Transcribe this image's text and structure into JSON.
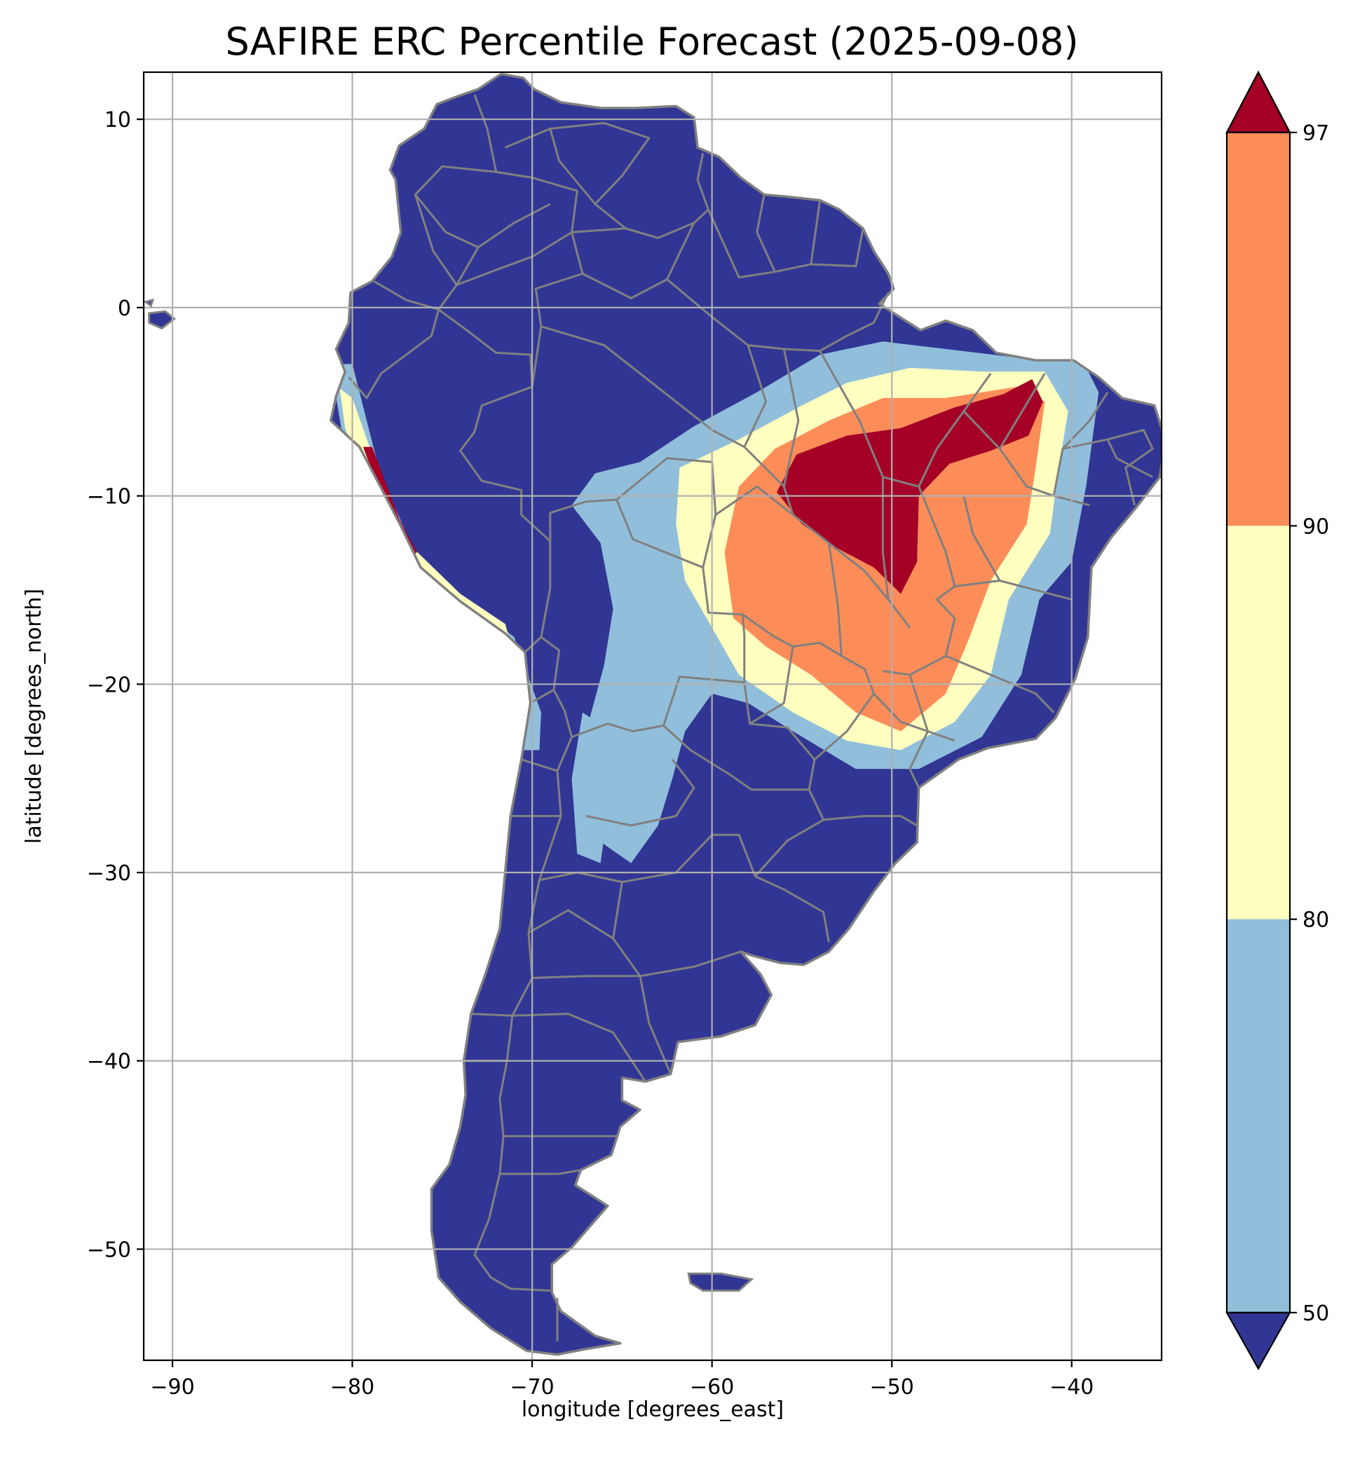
{
  "title": "SAFIRE ERC Percentile Forecast (2025-09-08)",
  "map": {
    "xlabel": "longitude [degrees_east]",
    "ylabel": "latitude [degrees_north]",
    "xlim": [
      -91.6,
      -35
    ],
    "ylim": [
      -55.9,
      12.5
    ],
    "x_ticks": [
      -90,
      -80,
      -70,
      -60,
      -50,
      -40
    ],
    "y_ticks": [
      10,
      0,
      -10,
      -20,
      -30,
      -40,
      -50
    ],
    "x_tick_labels": [
      "−90",
      "−80",
      "−70",
      "−60",
      "−50",
      "−40"
    ],
    "y_tick_labels": [
      "10",
      "0",
      "−10",
      "−20",
      "−30",
      "−40",
      "−50"
    ],
    "grid": true,
    "colors": {
      "land_base": "#313695",
      "border": "#808080",
      "grid": "#b0b0b0"
    }
  },
  "colorbar": {
    "boundaries": [
      50,
      80,
      90,
      97
    ],
    "tick_labels": [
      "50",
      "80",
      "90",
      "97"
    ],
    "colors": {
      "below_50": "#313695",
      "50_80": "#91bfdb",
      "80_90": "#ffffbf",
      "90_97": "#fc8d59",
      "above_97": "#a50026"
    },
    "extend": "both"
  }
}
